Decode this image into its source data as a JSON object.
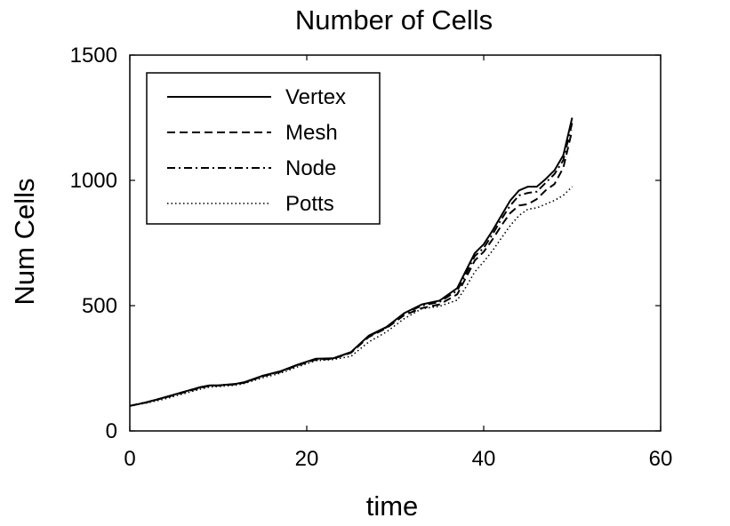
{
  "chart_data": {
    "type": "line",
    "title": "Number of Cells",
    "xlabel": "time",
    "ylabel": "Num Cells",
    "xlim": [
      0,
      60
    ],
    "ylim": [
      0,
      1500
    ],
    "xticks": [
      "0",
      "20",
      "40",
      "60"
    ],
    "yticks": [
      "0",
      "500",
      "1000",
      "1500"
    ],
    "grid": false,
    "legend_position": "top-left",
    "x": [
      0,
      2,
      4,
      6,
      8,
      9,
      10,
      12,
      13,
      15,
      17,
      19,
      21,
      23,
      25,
      27,
      29,
      31,
      33,
      35,
      37,
      38,
      39,
      40,
      41,
      42,
      43,
      44,
      45,
      46,
      47,
      48,
      49,
      50
    ],
    "series": [
      {
        "name": "Vertex",
        "line_style": "solid",
        "values": [
          100,
          115,
          135,
          155,
          175,
          182,
          182,
          188,
          195,
          220,
          238,
          265,
          288,
          290,
          315,
          380,
          415,
          470,
          505,
          520,
          570,
          640,
          710,
          745,
          800,
          860,
          920,
          960,
          975,
          975,
          1005,
          1040,
          1100,
          1250
        ]
      },
      {
        "name": "Mesh",
        "line_style": "dashed",
        "values": [
          100,
          115,
          133,
          153,
          172,
          180,
          181,
          186,
          193,
          218,
          235,
          262,
          284,
          288,
          312,
          375,
          410,
          462,
          490,
          505,
          545,
          612,
          680,
          715,
          765,
          820,
          870,
          900,
          905,
          925,
          960,
          985,
          1050,
          1200
        ]
      },
      {
        "name": "Node",
        "line_style": "dashdot",
        "values": [
          100,
          116,
          134,
          155,
          174,
          181,
          182,
          187,
          194,
          220,
          237,
          264,
          286,
          290,
          314,
          378,
          413,
          468,
          500,
          515,
          560,
          628,
          698,
          730,
          785,
          845,
          900,
          940,
          950,
          955,
          990,
          1025,
          1080,
          1230
        ]
      },
      {
        "name": "Potts",
        "line_style": "dotted",
        "values": [
          100,
          112,
          128,
          148,
          167,
          175,
          177,
          183,
          190,
          212,
          230,
          256,
          280,
          285,
          298,
          355,
          395,
          448,
          488,
          497,
          522,
          575,
          635,
          675,
          720,
          770,
          820,
          860,
          885,
          890,
          905,
          920,
          940,
          975
        ]
      }
    ]
  }
}
